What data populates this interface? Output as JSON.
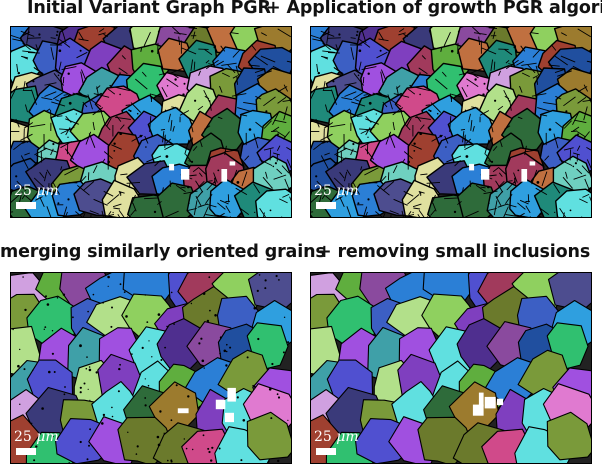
{
  "titles": {
    "tl": "Initial Variant Graph PGR",
    "tr": "+ Application of growth PGR algorit",
    "bl": "merging similarly oriented grains",
    "br": "+ removing small inclusions"
  },
  "scalebar": {
    "value": "25",
    "unit": "μm"
  },
  "palette": [
    "#2e6b3a",
    "#3c5fc4",
    "#8a4a9e",
    "#3fa0a8",
    "#6b7a2c",
    "#a13a5c",
    "#4d4d8f",
    "#1f8a7a",
    "#7f3fbf",
    "#2b7fd6",
    "#5fae3e",
    "#9c7b2e",
    "#d04a8a",
    "#3a3a7a",
    "#6fd0c0",
    "#b2e08a",
    "#4f2f8f",
    "#c07040",
    "#2f9fdf",
    "#8fd05f",
    "#e07ad0",
    "#5050d0",
    "#7a9a3a",
    "#30c070",
    "#a050e0",
    "#d0a0e0",
    "#204f9f",
    "#60e0e0",
    "#9f4030",
    "#e0e09f"
  ]
}
